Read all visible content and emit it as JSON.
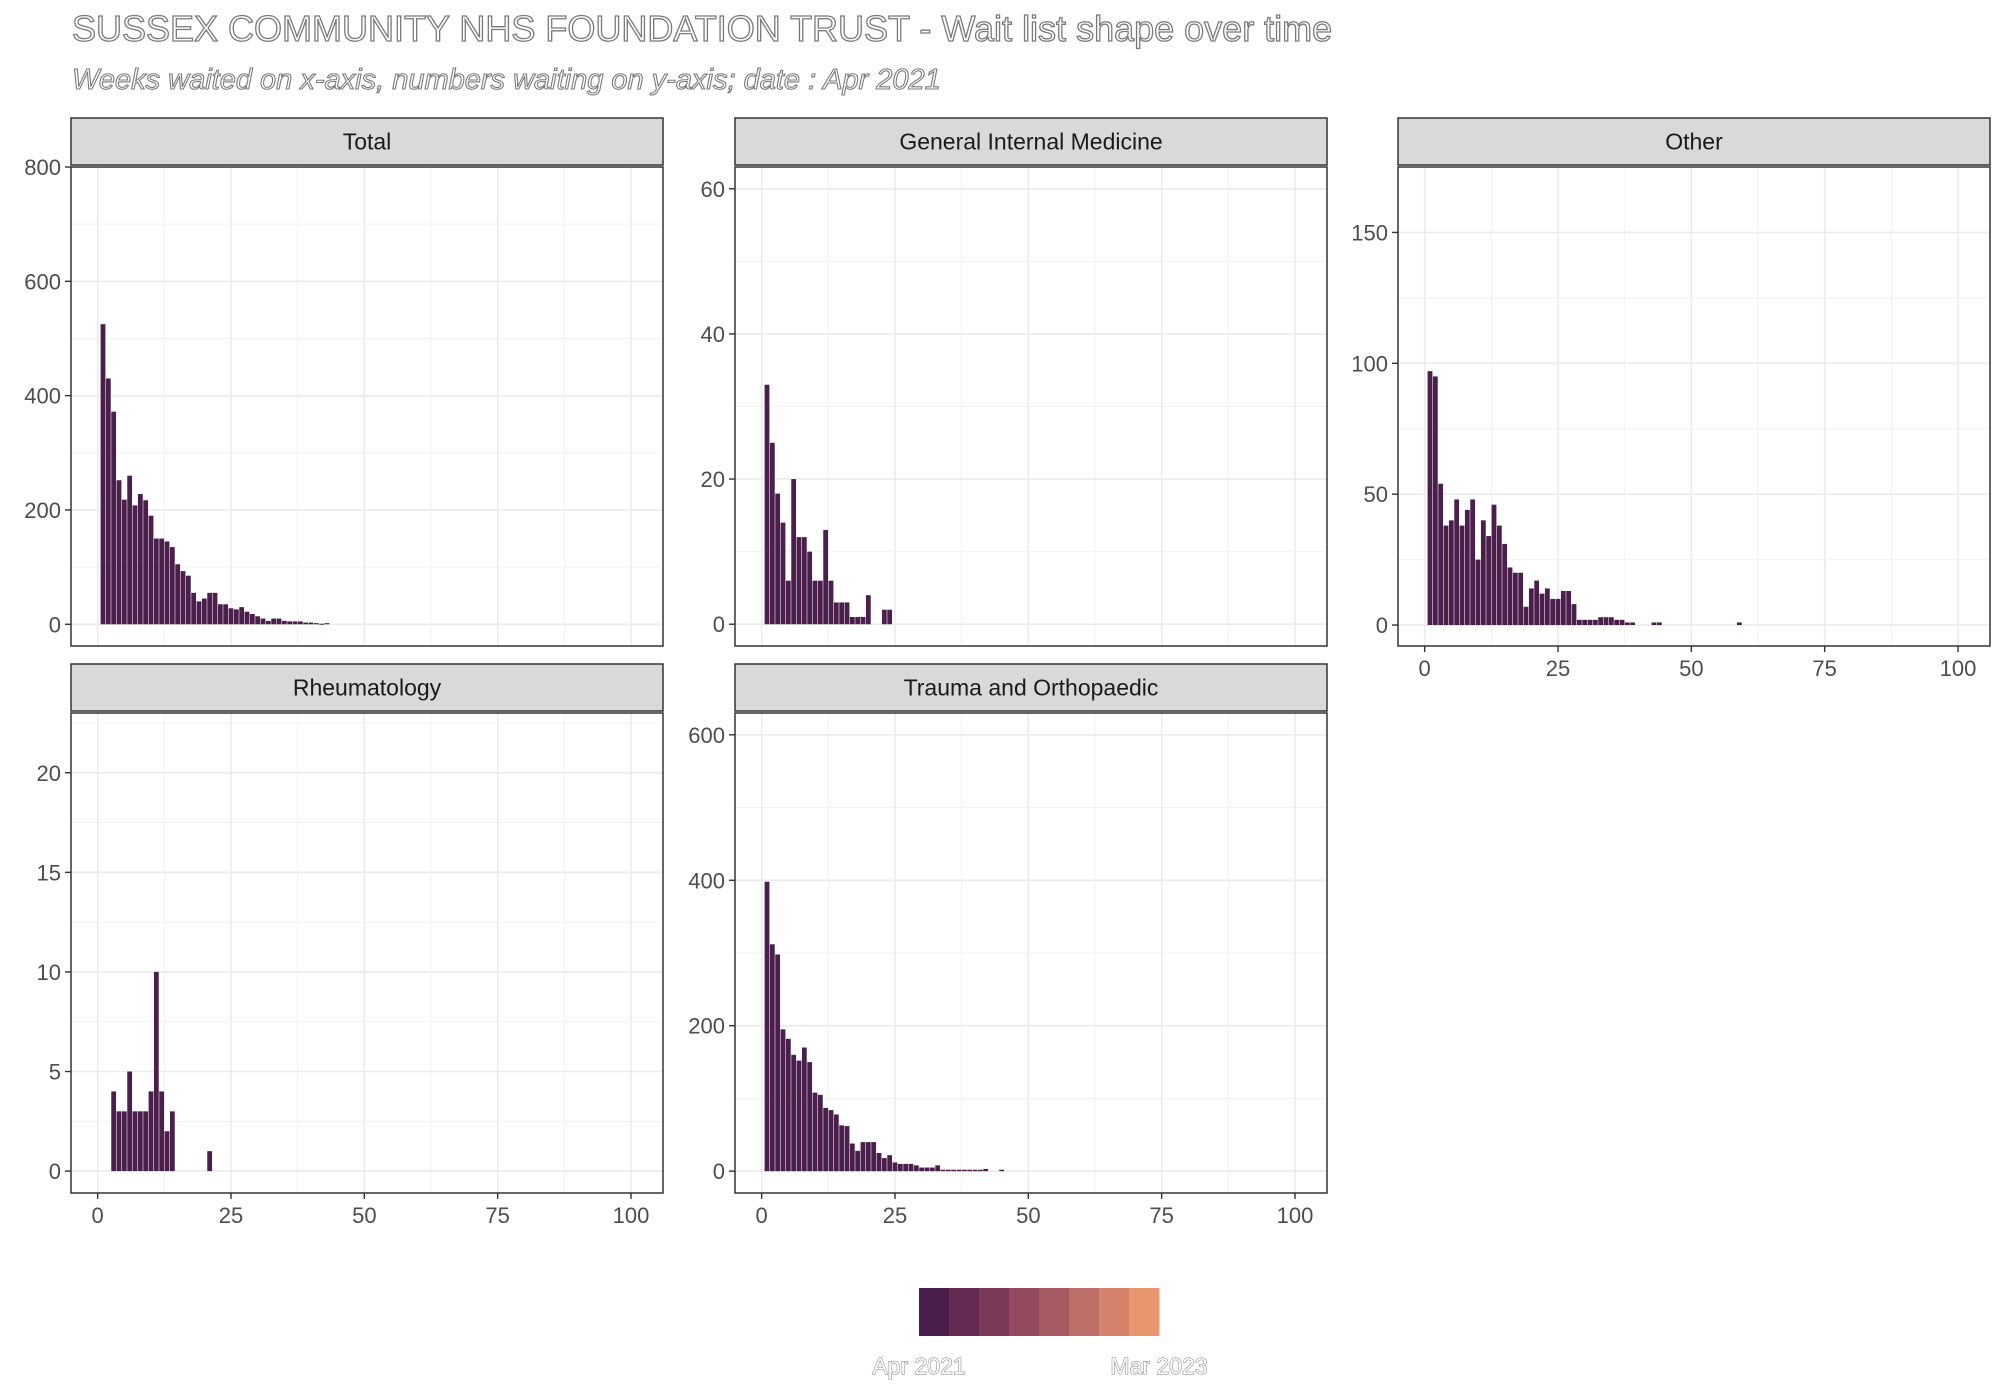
{
  "title": "SUSSEX COMMUNITY NHS FOUNDATION TRUST - Wait list shape over time",
  "subtitle": "Weeks waited on x-axis, numbers waiting on y-axis; date : Apr 2021",
  "legend": {
    "colors": [
      "#4a1f4b",
      "#632a52",
      "#7b3a59",
      "#93495e",
      "#a85a62",
      "#bd6e66",
      "#d48269",
      "#e8966d"
    ],
    "min_label": "Apr 2021",
    "max_label": "Mar 2023"
  },
  "bar_color": "#4a1f4b",
  "chart_data": [
    {
      "type": "bar",
      "facet": "Total",
      "xlim": [
        -5,
        106
      ],
      "xticks": [
        0,
        25,
        50,
        75,
        100
      ],
      "show_xticks": false,
      "ylim": [
        -38,
        800
      ],
      "yticks": [
        0,
        200,
        400,
        600,
        800
      ],
      "x": [
        1,
        2,
        3,
        4,
        5,
        6,
        7,
        8,
        9,
        10,
        11,
        12,
        13,
        14,
        15,
        16,
        17,
        18,
        19,
        20,
        21,
        22,
        23,
        24,
        25,
        26,
        27,
        28,
        29,
        30,
        31,
        32,
        33,
        34,
        35,
        36,
        37,
        38,
        39,
        40,
        41,
        42,
        43
      ],
      "values": [
        525,
        430,
        372,
        252,
        218,
        260,
        208,
        228,
        217,
        190,
        150,
        150,
        145,
        135,
        105,
        93,
        85,
        55,
        40,
        45,
        55,
        55,
        35,
        35,
        28,
        26,
        30,
        22,
        18,
        14,
        10,
        6,
        10,
        10,
        6,
        5,
        5,
        5,
        3,
        3,
        2,
        1,
        2
      ]
    },
    {
      "type": "bar",
      "facet": "General Internal Medicine",
      "xlim": [
        -5,
        106
      ],
      "xticks": [
        0,
        25,
        50,
        75,
        100
      ],
      "show_xticks": false,
      "ylim": [
        -3,
        63
      ],
      "yticks": [
        0,
        20,
        40,
        60
      ],
      "x": [
        1,
        2,
        3,
        4,
        5,
        6,
        7,
        8,
        9,
        10,
        11,
        12,
        13,
        14,
        15,
        16,
        17,
        18,
        19,
        20,
        21,
        22,
        23,
        24
      ],
      "values": [
        33,
        25,
        18,
        14,
        6,
        20,
        12,
        12,
        10,
        6,
        6,
        13,
        6,
        3,
        3,
        3,
        1,
        1,
        1,
        4,
        0,
        0,
        2,
        2
      ]
    },
    {
      "type": "bar",
      "facet": "Other",
      "xlim": [
        -5,
        106
      ],
      "xticks": [
        0,
        25,
        50,
        75,
        100
      ],
      "show_xticks": true,
      "ylim": [
        -8,
        175
      ],
      "yticks": [
        0,
        50,
        100,
        150
      ],
      "x": [
        1,
        2,
        3,
        4,
        5,
        6,
        7,
        8,
        9,
        10,
        11,
        12,
        13,
        14,
        15,
        16,
        17,
        18,
        19,
        20,
        21,
        22,
        23,
        24,
        25,
        26,
        27,
        28,
        29,
        30,
        31,
        32,
        33,
        34,
        35,
        36,
        37,
        38,
        39,
        40,
        41,
        42,
        43,
        44,
        59
      ],
      "values": [
        97,
        95,
        54,
        38,
        40,
        48,
        38,
        44,
        48,
        25,
        40,
        34,
        46,
        38,
        31,
        22,
        20,
        20,
        7,
        14,
        17,
        12,
        14,
        10,
        10,
        13,
        13,
        8,
        2,
        2,
        2,
        2,
        3,
        3,
        3,
        2,
        2,
        1,
        1,
        0,
        0,
        0,
        1,
        1,
        1
      ]
    },
    {
      "type": "bar",
      "facet": "Rheumatology",
      "xlim": [
        -5,
        106
      ],
      "xticks": [
        0,
        25,
        50,
        75,
        100
      ],
      "show_xticks": true,
      "ylim": [
        -1.1,
        23
      ],
      "yticks": [
        0,
        5,
        10,
        15,
        20
      ],
      "x": [
        3,
        4,
        5,
        6,
        7,
        8,
        9,
        10,
        11,
        12,
        13,
        14,
        21
      ],
      "values": [
        4,
        3,
        3,
        5,
        3,
        3,
        3,
        4,
        10,
        4,
        2,
        3,
        1
      ]
    },
    {
      "type": "bar",
      "facet": "Trauma and Orthopaedic",
      "xlim": [
        -5,
        106
      ],
      "xticks": [
        0,
        25,
        50,
        75,
        100
      ],
      "show_xticks": true,
      "ylim": [
        -30,
        630
      ],
      "yticks": [
        0,
        200,
        400,
        600
      ],
      "x": [
        1,
        2,
        3,
        4,
        5,
        6,
        7,
        8,
        9,
        10,
        11,
        12,
        13,
        14,
        15,
        16,
        17,
        18,
        19,
        20,
        21,
        22,
        23,
        24,
        25,
        26,
        27,
        28,
        29,
        30,
        31,
        32,
        33,
        34,
        35,
        36,
        37,
        38,
        39,
        40,
        41,
        42,
        43,
        44,
        45
      ],
      "values": [
        398,
        312,
        298,
        195,
        182,
        160,
        152,
        170,
        150,
        108,
        105,
        87,
        84,
        78,
        63,
        62,
        38,
        28,
        40,
        40,
        40,
        25,
        18,
        22,
        12,
        10,
        10,
        10,
        8,
        5,
        5,
        5,
        8,
        2,
        2,
        2,
        2,
        2,
        2,
        2,
        2,
        3,
        0,
        0,
        2
      ]
    }
  ]
}
